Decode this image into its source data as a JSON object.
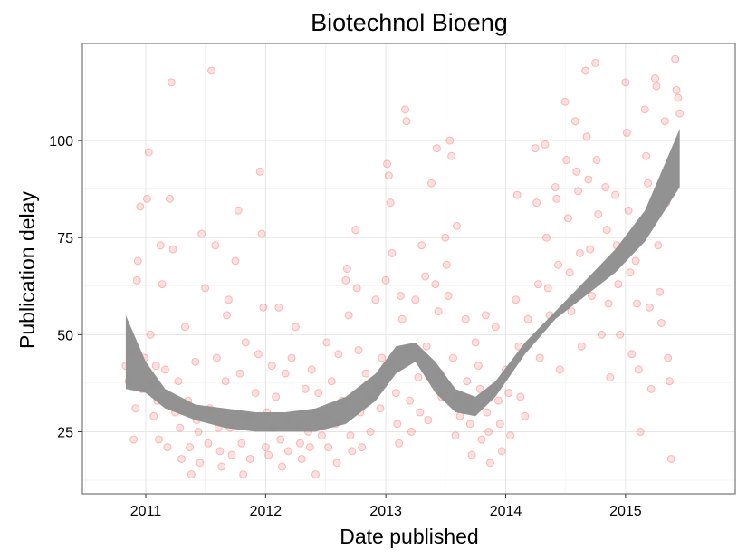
{
  "chart_data": {
    "type": "scatter",
    "title": "Biotechnol Bioeng",
    "xlabel": "Date published",
    "ylabel": "Publication delay",
    "x_ticks": [
      "2011",
      "2012",
      "2013",
      "2014",
      "2015"
    ],
    "y_ticks": [
      "25",
      "50",
      "75",
      "100"
    ],
    "xlim": [
      "2010-06-22",
      "2015-12-01"
    ],
    "ylim": [
      9,
      125
    ],
    "grid": true,
    "point_color": "#f04040",
    "smooth_band_color": "#8c8c8c",
    "smooth": {
      "x": [
        "2010-11-01",
        "2011-01-01",
        "2011-03-01",
        "2011-06-01",
        "2011-09-01",
        "2011-12-01",
        "2012-03-01",
        "2012-06-01",
        "2012-09-01",
        "2012-12-01",
        "2013-02-01",
        "2013-04-01",
        "2013-06-01",
        "2013-08-01",
        "2013-10-01",
        "2013-12-01",
        "2014-03-01",
        "2014-06-01",
        "2014-09-01",
        "2014-12-01",
        "2015-03-01",
        "2015-06-15"
      ],
      "lower": [
        36,
        35,
        31,
        28,
        26,
        25,
        25,
        25,
        27,
        33,
        40,
        43,
        35,
        30,
        29,
        34,
        45,
        54,
        60,
        66,
        74,
        88
      ],
      "upper": [
        55,
        43,
        36,
        32,
        31,
        30,
        30,
        31,
        34,
        40,
        47,
        48,
        43,
        36,
        34,
        38,
        48,
        56,
        64,
        72,
        82,
        103
      ]
    },
    "points": [
      [
        "2010-11-01",
        42
      ],
      [
        "2010-11-10",
        38
      ],
      [
        "2010-11-20",
        46
      ],
      [
        "2010-11-25",
        23
      ],
      [
        "2010-12-01",
        31
      ],
      [
        "2010-12-05",
        64
      ],
      [
        "2010-12-08",
        69
      ],
      [
        "2010-12-15",
        83
      ],
      [
        "2010-12-20",
        36
      ],
      [
        "2010-12-28",
        44
      ],
      [
        "2011-01-05",
        85
      ],
      [
        "2011-01-10",
        97
      ],
      [
        "2011-01-15",
        50
      ],
      [
        "2011-01-20",
        37
      ],
      [
        "2011-01-25",
        29
      ],
      [
        "2011-02-01",
        42
      ],
      [
        "2011-02-05",
        33
      ],
      [
        "2011-02-10",
        23
      ],
      [
        "2011-02-15",
        73
      ],
      [
        "2011-02-20",
        63
      ],
      [
        "2011-03-01",
        41
      ],
      [
        "2011-03-08",
        21
      ],
      [
        "2011-03-15",
        85
      ],
      [
        "2011-03-20",
        115
      ],
      [
        "2011-03-25",
        72
      ],
      [
        "2011-04-01",
        30
      ],
      [
        "2011-04-10",
        38
      ],
      [
        "2011-04-15",
        26
      ],
      [
        "2011-04-20",
        18
      ],
      [
        "2011-05-01",
        52
      ],
      [
        "2011-05-10",
        33
      ],
      [
        "2011-05-15",
        21
      ],
      [
        "2011-05-20",
        14
      ],
      [
        "2011-06-01",
        43
      ],
      [
        "2011-06-05",
        28
      ],
      [
        "2011-06-10",
        25
      ],
      [
        "2011-06-15",
        17
      ],
      [
        "2011-06-20",
        76
      ],
      [
        "2011-07-01",
        62
      ],
      [
        "2011-07-10",
        22
      ],
      [
        "2011-07-15",
        31
      ],
      [
        "2011-07-20",
        118
      ],
      [
        "2011-08-01",
        73
      ],
      [
        "2011-08-05",
        44
      ],
      [
        "2011-08-10",
        26
      ],
      [
        "2011-08-15",
        20
      ],
      [
        "2011-08-20",
        16
      ],
      [
        "2011-09-01",
        38
      ],
      [
        "2011-09-05",
        55
      ],
      [
        "2011-09-10",
        59
      ],
      [
        "2011-09-15",
        26
      ],
      [
        "2011-09-20",
        19
      ],
      [
        "2011-10-01",
        69
      ],
      [
        "2011-10-10",
        82
      ],
      [
        "2011-10-15",
        40
      ],
      [
        "2011-10-20",
        22
      ],
      [
        "2011-10-25",
        14
      ],
      [
        "2011-11-01",
        48
      ],
      [
        "2011-11-10",
        29
      ],
      [
        "2011-11-15",
        18
      ],
      [
        "2011-12-01",
        35
      ],
      [
        "2011-12-10",
        45
      ],
      [
        "2011-12-15",
        92
      ],
      [
        "2011-12-20",
        76
      ],
      [
        "2011-12-25",
        57
      ],
      [
        "2012-01-01",
        21
      ],
      [
        "2012-01-05",
        30
      ],
      [
        "2012-01-10",
        19
      ],
      [
        "2012-01-20",
        42
      ],
      [
        "2012-01-25",
        26
      ],
      [
        "2012-02-01",
        34
      ],
      [
        "2012-02-10",
        57
      ],
      [
        "2012-02-15",
        23
      ],
      [
        "2012-02-20",
        16
      ],
      [
        "2012-03-01",
        40
      ],
      [
        "2012-03-05",
        28
      ],
      [
        "2012-03-10",
        20
      ],
      [
        "2012-03-20",
        44
      ],
      [
        "2012-04-01",
        52
      ],
      [
        "2012-04-10",
        27
      ],
      [
        "2012-04-15",
        22
      ],
      [
        "2012-04-20",
        18
      ],
      [
        "2012-05-01",
        36
      ],
      [
        "2012-05-10",
        25
      ],
      [
        "2012-05-15",
        21
      ],
      [
        "2012-05-20",
        41
      ],
      [
        "2012-06-01",
        14
      ],
      [
        "2012-06-05",
        30
      ],
      [
        "2012-06-10",
        35
      ],
      [
        "2012-06-20",
        24
      ],
      [
        "2012-07-01",
        29
      ],
      [
        "2012-07-05",
        48
      ],
      [
        "2012-07-10",
        21
      ],
      [
        "2012-07-20",
        38
      ],
      [
        "2012-08-01",
        27
      ],
      [
        "2012-08-05",
        17
      ],
      [
        "2012-08-10",
        45
      ],
      [
        "2012-08-20",
        33
      ],
      [
        "2012-09-01",
        64
      ],
      [
        "2012-09-05",
        67
      ],
      [
        "2012-09-10",
        55
      ],
      [
        "2012-09-15",
        24
      ],
      [
        "2012-09-20",
        20
      ],
      [
        "2012-10-01",
        77
      ],
      [
        "2012-10-05",
        62
      ],
      [
        "2012-10-10",
        46
      ],
      [
        "2012-10-15",
        30
      ],
      [
        "2012-10-20",
        21
      ],
      [
        "2012-11-01",
        40
      ],
      [
        "2012-11-10",
        33
      ],
      [
        "2012-11-15",
        25
      ],
      [
        "2012-12-01",
        59
      ],
      [
        "2012-12-10",
        36
      ],
      [
        "2012-12-15",
        31
      ],
      [
        "2012-12-20",
        44
      ],
      [
        "2013-01-01",
        64
      ],
      [
        "2013-01-05",
        94
      ],
      [
        "2013-01-10",
        91
      ],
      [
        "2013-01-15",
        84
      ],
      [
        "2013-01-20",
        71
      ],
      [
        "2013-01-25",
        42
      ],
      [
        "2013-02-01",
        35
      ],
      [
        "2013-02-05",
        27
      ],
      [
        "2013-02-10",
        22
      ],
      [
        "2013-02-15",
        60
      ],
      [
        "2013-02-20",
        54
      ],
      [
        "2013-03-01",
        108
      ],
      [
        "2013-03-05",
        105
      ],
      [
        "2013-03-10",
        46
      ],
      [
        "2013-03-15",
        33
      ],
      [
        "2013-03-20",
        25
      ],
      [
        "2013-04-01",
        59
      ],
      [
        "2013-04-10",
        39
      ],
      [
        "2013-04-15",
        30
      ],
      [
        "2013-04-20",
        73
      ],
      [
        "2013-05-01",
        65
      ],
      [
        "2013-05-05",
        47
      ],
      [
        "2013-05-10",
        28
      ],
      [
        "2013-05-20",
        89
      ],
      [
        "2013-06-01",
        63
      ],
      [
        "2013-06-05",
        98
      ],
      [
        "2013-06-10",
        56
      ],
      [
        "2013-06-15",
        40
      ],
      [
        "2013-06-20",
        34
      ],
      [
        "2013-07-01",
        75
      ],
      [
        "2013-07-05",
        68
      ],
      [
        "2013-07-10",
        60
      ],
      [
        "2013-07-15",
        100
      ],
      [
        "2013-07-20",
        96
      ],
      [
        "2013-07-25",
        44
      ],
      [
        "2013-08-01",
        24
      ],
      [
        "2013-08-05",
        78
      ],
      [
        "2013-08-10",
        34
      ],
      [
        "2013-08-15",
        29
      ],
      [
        "2013-09-01",
        54
      ],
      [
        "2013-09-05",
        38
      ],
      [
        "2013-09-10",
        32
      ],
      [
        "2013-09-15",
        27
      ],
      [
        "2013-09-20",
        19
      ],
      [
        "2013-10-01",
        48
      ],
      [
        "2013-10-10",
        42
      ],
      [
        "2013-10-15",
        36
      ],
      [
        "2013-10-20",
        23
      ],
      [
        "2013-11-01",
        55
      ],
      [
        "2013-11-05",
        30
      ],
      [
        "2013-11-10",
        25
      ],
      [
        "2013-11-15",
        17
      ],
      [
        "2013-12-01",
        52
      ],
      [
        "2013-12-10",
        33
      ],
      [
        "2013-12-15",
        27
      ],
      [
        "2013-12-20",
        20
      ],
      [
        "2014-01-01",
        41
      ],
      [
        "2014-01-10",
        35
      ],
      [
        "2014-01-15",
        24
      ],
      [
        "2014-02-01",
        59
      ],
      [
        "2014-02-05",
        86
      ],
      [
        "2014-02-10",
        47
      ],
      [
        "2014-02-15",
        34
      ],
      [
        "2014-03-01",
        29
      ],
      [
        "2014-03-10",
        54
      ],
      [
        "2014-04-01",
        98
      ],
      [
        "2014-04-05",
        84
      ],
      [
        "2014-04-10",
        63
      ],
      [
        "2014-04-15",
        44
      ],
      [
        "2014-05-01",
        99
      ],
      [
        "2014-05-05",
        75
      ],
      [
        "2014-05-10",
        62
      ],
      [
        "2014-05-15",
        55
      ],
      [
        "2014-06-01",
        88
      ],
      [
        "2014-06-05",
        85
      ],
      [
        "2014-06-10",
        68
      ],
      [
        "2014-06-15",
        41
      ],
      [
        "2014-07-01",
        110
      ],
      [
        "2014-07-05",
        95
      ],
      [
        "2014-07-10",
        80
      ],
      [
        "2014-07-15",
        66
      ],
      [
        "2014-07-20",
        56
      ],
      [
        "2014-08-01",
        105
      ],
      [
        "2014-08-05",
        92
      ],
      [
        "2014-08-10",
        87
      ],
      [
        "2014-08-15",
        71
      ],
      [
        "2014-08-20",
        47
      ],
      [
        "2014-09-01",
        118
      ],
      [
        "2014-09-05",
        101
      ],
      [
        "2014-09-10",
        90
      ],
      [
        "2014-09-15",
        72
      ],
      [
        "2014-09-20",
        60
      ],
      [
        "2014-10-01",
        120
      ],
      [
        "2014-10-05",
        95
      ],
      [
        "2014-10-10",
        81
      ],
      [
        "2014-10-15",
        66
      ],
      [
        "2014-10-20",
        50
      ],
      [
        "2014-11-01",
        88
      ],
      [
        "2014-11-05",
        77
      ],
      [
        "2014-11-10",
        58
      ],
      [
        "2014-11-15",
        39
      ],
      [
        "2014-12-01",
        86
      ],
      [
        "2014-12-05",
        73
      ],
      [
        "2014-12-10",
        63
      ],
      [
        "2014-12-15",
        50
      ],
      [
        "2015-01-01",
        115
      ],
      [
        "2015-01-05",
        102
      ],
      [
        "2015-01-10",
        82
      ],
      [
        "2015-01-15",
        66
      ],
      [
        "2015-01-20",
        45
      ],
      [
        "2015-02-01",
        69
      ],
      [
        "2015-02-05",
        58
      ],
      [
        "2015-02-10",
        41
      ],
      [
        "2015-02-15",
        25
      ],
      [
        "2015-03-01",
        108
      ],
      [
        "2015-03-05",
        96
      ],
      [
        "2015-03-10",
        89
      ],
      [
        "2015-03-15",
        57
      ],
      [
        "2015-03-20",
        36
      ],
      [
        "2015-04-01",
        116
      ],
      [
        "2015-04-05",
        114
      ],
      [
        "2015-04-10",
        73
      ],
      [
        "2015-04-15",
        61
      ],
      [
        "2015-04-20",
        53
      ],
      [
        "2015-05-01",
        105
      ],
      [
        "2015-05-05",
        84
      ],
      [
        "2015-05-10",
        44
      ],
      [
        "2015-05-15",
        38
      ],
      [
        "2015-05-20",
        18
      ],
      [
        "2015-06-01",
        121
      ],
      [
        "2015-06-05",
        113
      ],
      [
        "2015-06-10",
        111
      ],
      [
        "2015-06-15",
        107
      ]
    ]
  }
}
